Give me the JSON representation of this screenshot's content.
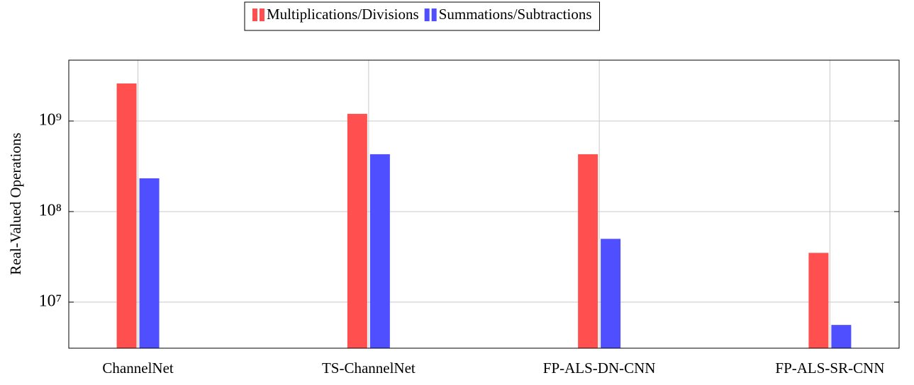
{
  "chart_data": {
    "type": "bar",
    "y_label": "Real-Valued Operations",
    "categories": [
      "ChannelNet",
      "TS-ChannelNet",
      "FP-ALS-DN-CNN",
      "FP-ALS-SR-CNN"
    ],
    "series": [
      {
        "name": "Multiplications/Divisions",
        "color": "#ff4f4f",
        "values": [
          2600000000,
          1200000000,
          430000000,
          35000000
        ]
      },
      {
        "name": "Summations/Subtractions",
        "color": "#4f4fff",
        "values": [
          233000000,
          430000000,
          50000000,
          5600000
        ]
      }
    ],
    "ylim": [
      3100000,
      4700000000
    ],
    "log_scale": true,
    "yticks": [
      {
        "value": 10000000,
        "label": "10⁷"
      },
      {
        "value": 100000000,
        "label": "10⁸"
      },
      {
        "value": 1000000000,
        "label": "10⁹"
      }
    ],
    "grid": true,
    "legend_position": "top"
  }
}
